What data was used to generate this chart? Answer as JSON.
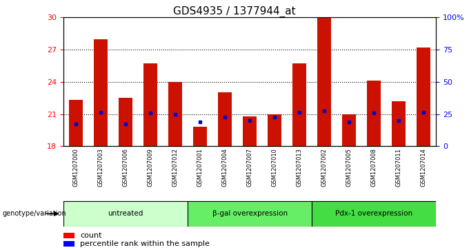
{
  "title": "GDS4935 / 1377944_at",
  "samples": [
    "GSM1207000",
    "GSM1207003",
    "GSM1207006",
    "GSM1207009",
    "GSM1207012",
    "GSM1207001",
    "GSM1207004",
    "GSM1207007",
    "GSM1207010",
    "GSM1207013",
    "GSM1207002",
    "GSM1207005",
    "GSM1207008",
    "GSM1207011",
    "GSM1207014"
  ],
  "count_values": [
    22.3,
    28.0,
    22.5,
    25.7,
    24.0,
    19.8,
    23.0,
    20.8,
    21.0,
    25.7,
    30.0,
    21.0,
    24.1,
    22.2,
    27.2
  ],
  "percentile_values": [
    20.1,
    21.2,
    20.1,
    21.1,
    21.0,
    20.3,
    20.7,
    20.4,
    20.7,
    21.2,
    21.3,
    20.3,
    21.1,
    20.4,
    21.2
  ],
  "bar_bottom": 18,
  "ylim_left": [
    18,
    30
  ],
  "ylim_right": [
    0,
    100
  ],
  "yticks_left": [
    18,
    21,
    24,
    27,
    30
  ],
  "yticks_right": [
    0,
    25,
    50,
    75,
    100
  ],
  "ytick_labels_right": [
    "0",
    "25",
    "50",
    "75",
    "100%"
  ],
  "groups": [
    {
      "label": "untreated",
      "start": 0,
      "end": 5,
      "color": "#ccffcc"
    },
    {
      "label": "β-gal overexpression",
      "start": 5,
      "end": 10,
      "color": "#66ee66"
    },
    {
      "label": "Pdx-1 overexpression",
      "start": 10,
      "end": 15,
      "color": "#44dd44"
    }
  ],
  "bar_color": "#cc1100",
  "percentile_color": "#0000cc",
  "bar_width": 0.55,
  "background_color": "#ffffff",
  "plot_bg_color": "#ffffff",
  "title_fontsize": 11,
  "sample_box_color": "#cccccc",
  "genotype_label": "genotype/variation",
  "legend_count_label": "count",
  "legend_percentile_label": "percentile rank within the sample"
}
